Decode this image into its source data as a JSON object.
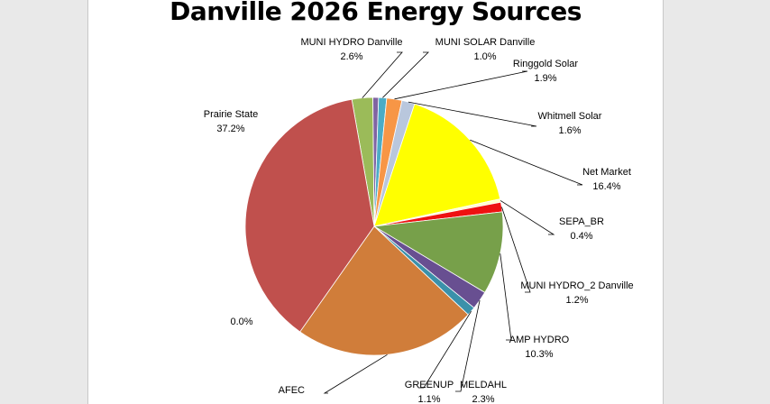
{
  "chart_data": {
    "type": "pie",
    "title": "Danville 2026 Energy Sources",
    "legend": "none",
    "slices": [
      {
        "name": "MUNI HYDRO Danville",
        "label": "2.6%",
        "value": 2.6,
        "color": "#9bbb59"
      },
      {
        "name": "",
        "label": "",
        "value": 0.7,
        "color": "#8064a2"
      },
      {
        "name": "MUNI SOLAR Danville",
        "label": "1.0%",
        "value": 1.0,
        "color": "#4bacc6"
      },
      {
        "name": "Ringgold Solar",
        "label": "1.9%",
        "value": 1.9,
        "color": "#f79646"
      },
      {
        "name": "Whitmell Solar",
        "label": "1.6%",
        "value": 1.6,
        "color": "#b9c7dd"
      },
      {
        "name": "Net Market",
        "label": "16.4%",
        "value": 16.4,
        "color": "#ffff00"
      },
      {
        "name": "SEPA_BR",
        "label": "0.4%",
        "value": 0.4,
        "color": "#ffffcc"
      },
      {
        "name": "MUNI HYDRO_2 Danville",
        "label": "1.2%",
        "value": 1.2,
        "color": "#ee1111"
      },
      {
        "name": "AMP HYDRO",
        "label": "10.3%",
        "value": 10.3,
        "color": "#77a04a"
      },
      {
        "name": "MELDAHL",
        "label": "2.3%",
        "value": 2.3,
        "color": "#684f91"
      },
      {
        "name": "GREENUP",
        "label": "1.1%",
        "value": 1.1,
        "color": "#3b91aa"
      },
      {
        "name": "AFEC",
        "label": "",
        "value": 22.6,
        "color": "#d07d3a"
      },
      {
        "name": "",
        "label": "0.0%",
        "value": 0.0,
        "color": "#999999"
      },
      {
        "name": "Prairie State",
        "label": "37.2%",
        "value": 37.2,
        "color": "#c0504d"
      }
    ]
  }
}
